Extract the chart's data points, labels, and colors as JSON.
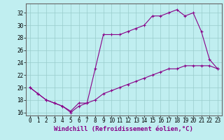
{
  "title": "",
  "xlabel": "Windchill (Refroidissement éolien,°C)",
  "ylabel": "",
  "background_color": "#c0eef0",
  "line_color": "#880088",
  "grid_color": "#99cccc",
  "xlim": [
    -0.5,
    23.5
  ],
  "ylim": [
    15.5,
    33.5
  ],
  "xticks": [
    0,
    1,
    2,
    3,
    4,
    5,
    6,
    7,
    8,
    9,
    10,
    11,
    12,
    13,
    14,
    15,
    16,
    17,
    18,
    19,
    20,
    21,
    22,
    23
  ],
  "yticks": [
    16,
    18,
    20,
    22,
    24,
    26,
    28,
    30,
    32
  ],
  "curve1_x": [
    0,
    1,
    2,
    3,
    4,
    5,
    6,
    7,
    8,
    9,
    10,
    11,
    12,
    13,
    14,
    15,
    16,
    17,
    18,
    19,
    20,
    21,
    22,
    23
  ],
  "curve1_y": [
    20,
    19,
    18,
    17.5,
    17,
    16.2,
    17.5,
    17.5,
    23,
    28.5,
    28.5,
    28.5,
    29,
    29.5,
    30,
    31.5,
    31.5,
    32,
    32.5,
    31.5,
    32,
    29,
    24.5,
    23
  ],
  "curve2_x": [
    0,
    1,
    2,
    3,
    4,
    5,
    6,
    7,
    8,
    9,
    10,
    11,
    12,
    13,
    14,
    15,
    16,
    17,
    18,
    19,
    20,
    21,
    22,
    23
  ],
  "curve2_y": [
    20,
    19,
    18,
    17.5,
    17,
    16,
    17,
    17.5,
    18,
    19,
    19.5,
    20,
    20.5,
    21,
    21.5,
    22,
    22.5,
    23,
    23,
    23.5,
    23.5,
    23.5,
    23.5,
    23
  ],
  "font_family": "monospace",
  "xlabel_fontsize": 6.5,
  "tick_fontsize": 5.5,
  "marker": "+",
  "linewidth": 0.8,
  "markersize": 3.0
}
